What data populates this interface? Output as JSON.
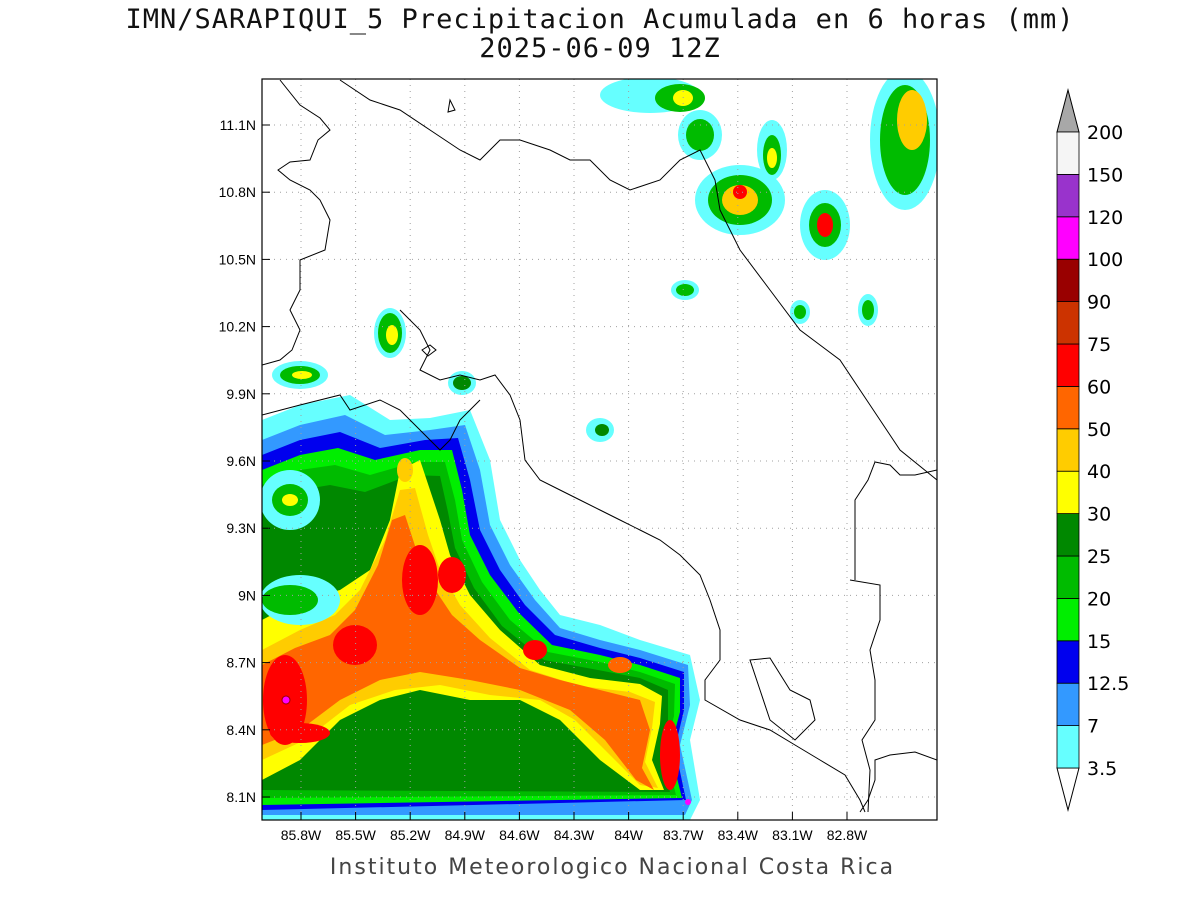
{
  "title": "IMN/SARAPIQUI_5 Precipitacion Acumulada en 6 horas (mm)",
  "subtitle": "2025-06-09 12Z",
  "credit": "Instituto Meteorologico Nacional Costa Rica",
  "lat_ticks": [
    "8.1N",
    "8.4N",
    "8.7N",
    "9N",
    "9.3N",
    "9.6N",
    "9.9N",
    "10.2N",
    "10.5N",
    "10.8N",
    "11.1N"
  ],
  "lon_ticks": [
    "85.8W",
    "85.5W",
    "85.2W",
    "84.9W",
    "84.6W",
    "84.3W",
    "84W",
    "83.7W",
    "83.4W",
    "83.1W",
    "82.8W"
  ],
  "colorbar": {
    "labels": [
      "3.5",
      "7",
      "12.5",
      "15",
      "20",
      "25",
      "30",
      "40",
      "50",
      "60",
      "75",
      "90",
      "100",
      "120",
      "150",
      "200"
    ],
    "colors": [
      "#66ffff",
      "#3399ff",
      "#0000ee",
      "#00ee00",
      "#00bb00",
      "#008800",
      "#ffff00",
      "#ffcc00",
      "#ff6600",
      "#ff0000",
      "#cc3300",
      "#990000",
      "#ff00ff",
      "#9933cc",
      "#f5f5f5"
    ],
    "over_color": "#a8a8a8",
    "under_color": "#ffffff"
  }
}
